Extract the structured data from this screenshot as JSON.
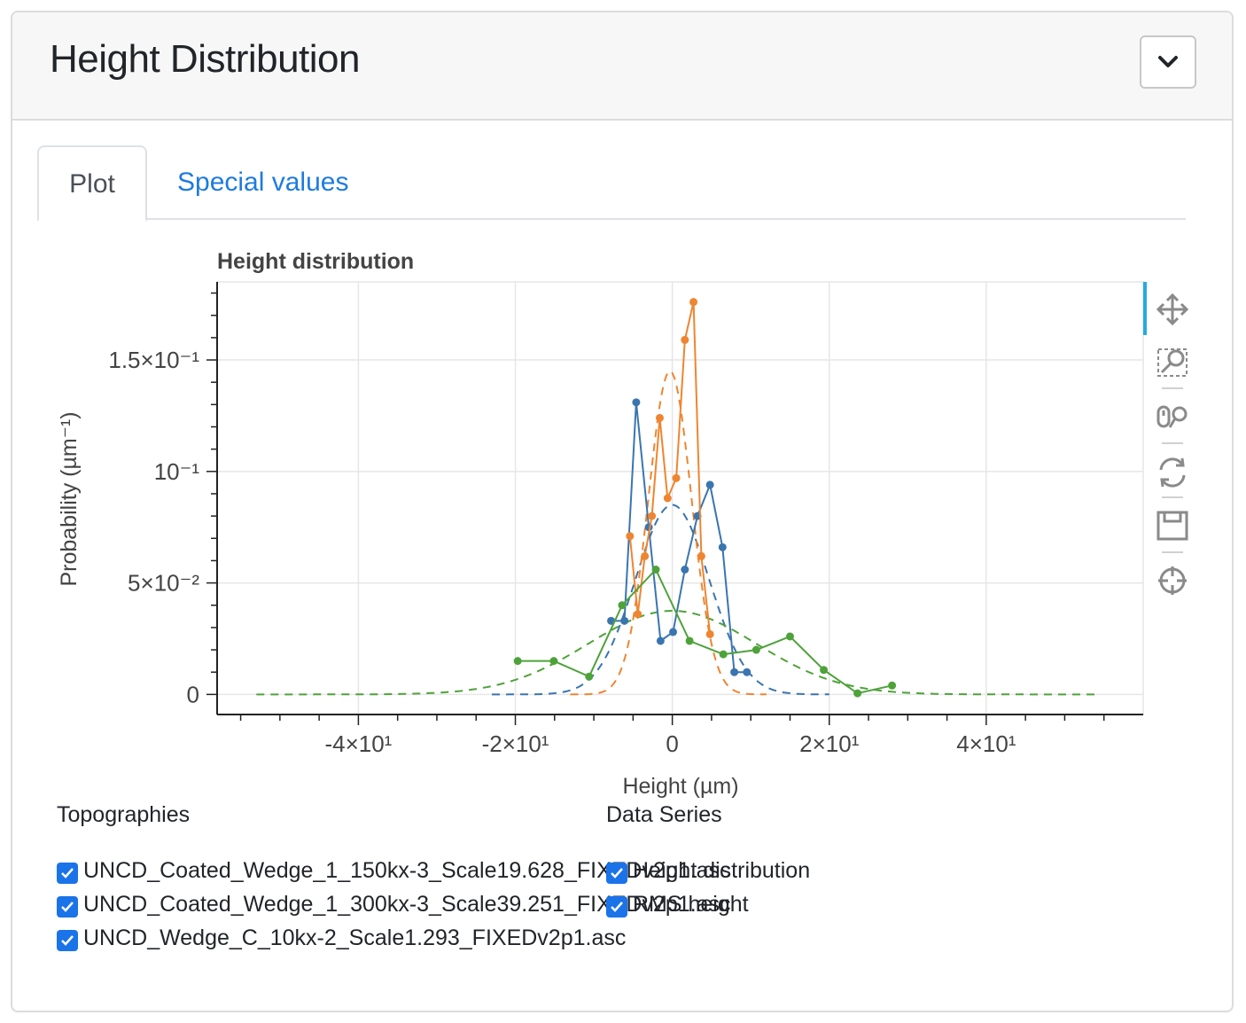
{
  "header": {
    "title": "Height Distribution"
  },
  "tabs": [
    {
      "label": "Plot"
    },
    {
      "label": "Special values"
    }
  ],
  "colors": {
    "series_blue": "#3a75b0",
    "series_orange": "#ef8530",
    "series_green": "#4ea23a",
    "accent": "#1e7be0",
    "checkbox": "#1a73e8"
  },
  "toolbar": {
    "tools": [
      "pan-icon",
      "box-zoom-icon",
      "wheel-zoom-icon",
      "reset-icon",
      "save-icon",
      "hover-icon"
    ]
  },
  "chart_data": {
    "type": "line",
    "title": "Height distribution",
    "xlabel": "Height (µm)",
    "ylabel": "Probability (µm⁻¹)",
    "xlim": [
      -58,
      60
    ],
    "ylim": [
      -0.009,
      0.185
    ],
    "x_ticks": [
      -40,
      -20,
      0,
      20,
      40
    ],
    "x_tick_labels": [
      "-4×10¹",
      "-2×10¹",
      "0",
      "2×10¹",
      "4×10¹"
    ],
    "y_ticks": [
      0,
      0.05,
      0.1,
      0.15
    ],
    "y_tick_labels": [
      "0",
      "5×10⁻²",
      "10⁻¹",
      "1.5×10⁻¹"
    ],
    "grid": true,
    "series": [
      {
        "color": "#3a75b0",
        "x": [
          -7.8,
          -6.1,
          -4.6,
          -3.0,
          -1.5,
          0.1,
          1.6,
          3.2,
          4.8,
          6.4,
          7.9,
          9.5
        ],
        "y": [
          0.033,
          0.033,
          0.131,
          0.075,
          0.024,
          0.028,
          0.056,
          0.08,
          0.094,
          0.066,
          0.01,
          0.01
        ]
      },
      {
        "color": "#ef8530",
        "x": [
          -5.4,
          -4.4,
          -3.5,
          -2.6,
          -1.6,
          -0.6,
          0.5,
          1.6,
          2.7,
          3.7,
          4.8
        ],
        "y": [
          0.071,
          0.036,
          0.062,
          0.08,
          0.124,
          0.088,
          0.097,
          0.159,
          0.176,
          0.062,
          0.027
        ]
      },
      {
        "color": "#4ea23a",
        "x": [
          -19.7,
          -15.1,
          -10.6,
          -6.4,
          -2.1,
          2.2,
          6.5,
          10.7,
          15.0,
          19.3,
          23.6,
          28.0
        ],
        "y": [
          0.015,
          0.015,
          0.008,
          0.04,
          0.056,
          0.024,
          0.018,
          0.02,
          0.026,
          0.011,
          0.0005,
          0.004
        ]
      }
    ],
    "fits": [
      {
        "color": "#3a75b0",
        "mean": 0.0,
        "std": 4.7,
        "peak": 0.085,
        "range": [
          -23,
          20
        ]
      },
      {
        "color": "#ef8530",
        "mean": -0.3,
        "std": 2.75,
        "peak": 0.145,
        "range": [
          -13,
          12
        ]
      },
      {
        "color": "#4ea23a",
        "mean": 0.0,
        "std": 10.7,
        "peak": 0.0375,
        "range": [
          -53,
          54
        ]
      }
    ]
  },
  "legend_topographies": {
    "title": "Topographies",
    "items": [
      "UNCD_Coated_Wedge_1_150kx-3_Scale19.628_FIXEDv2p1.asc",
      "UNCD_Coated_Wedge_1_300kx-3_Scale39.251_FIXEDv2p1.asc",
      "UNCD_Wedge_C_10kx-2_Scale1.293_FIXEDv2p1.asc"
    ]
  },
  "legend_series": {
    "title": "Data Series",
    "items": [
      "Height distribution",
      "RMS height"
    ]
  }
}
